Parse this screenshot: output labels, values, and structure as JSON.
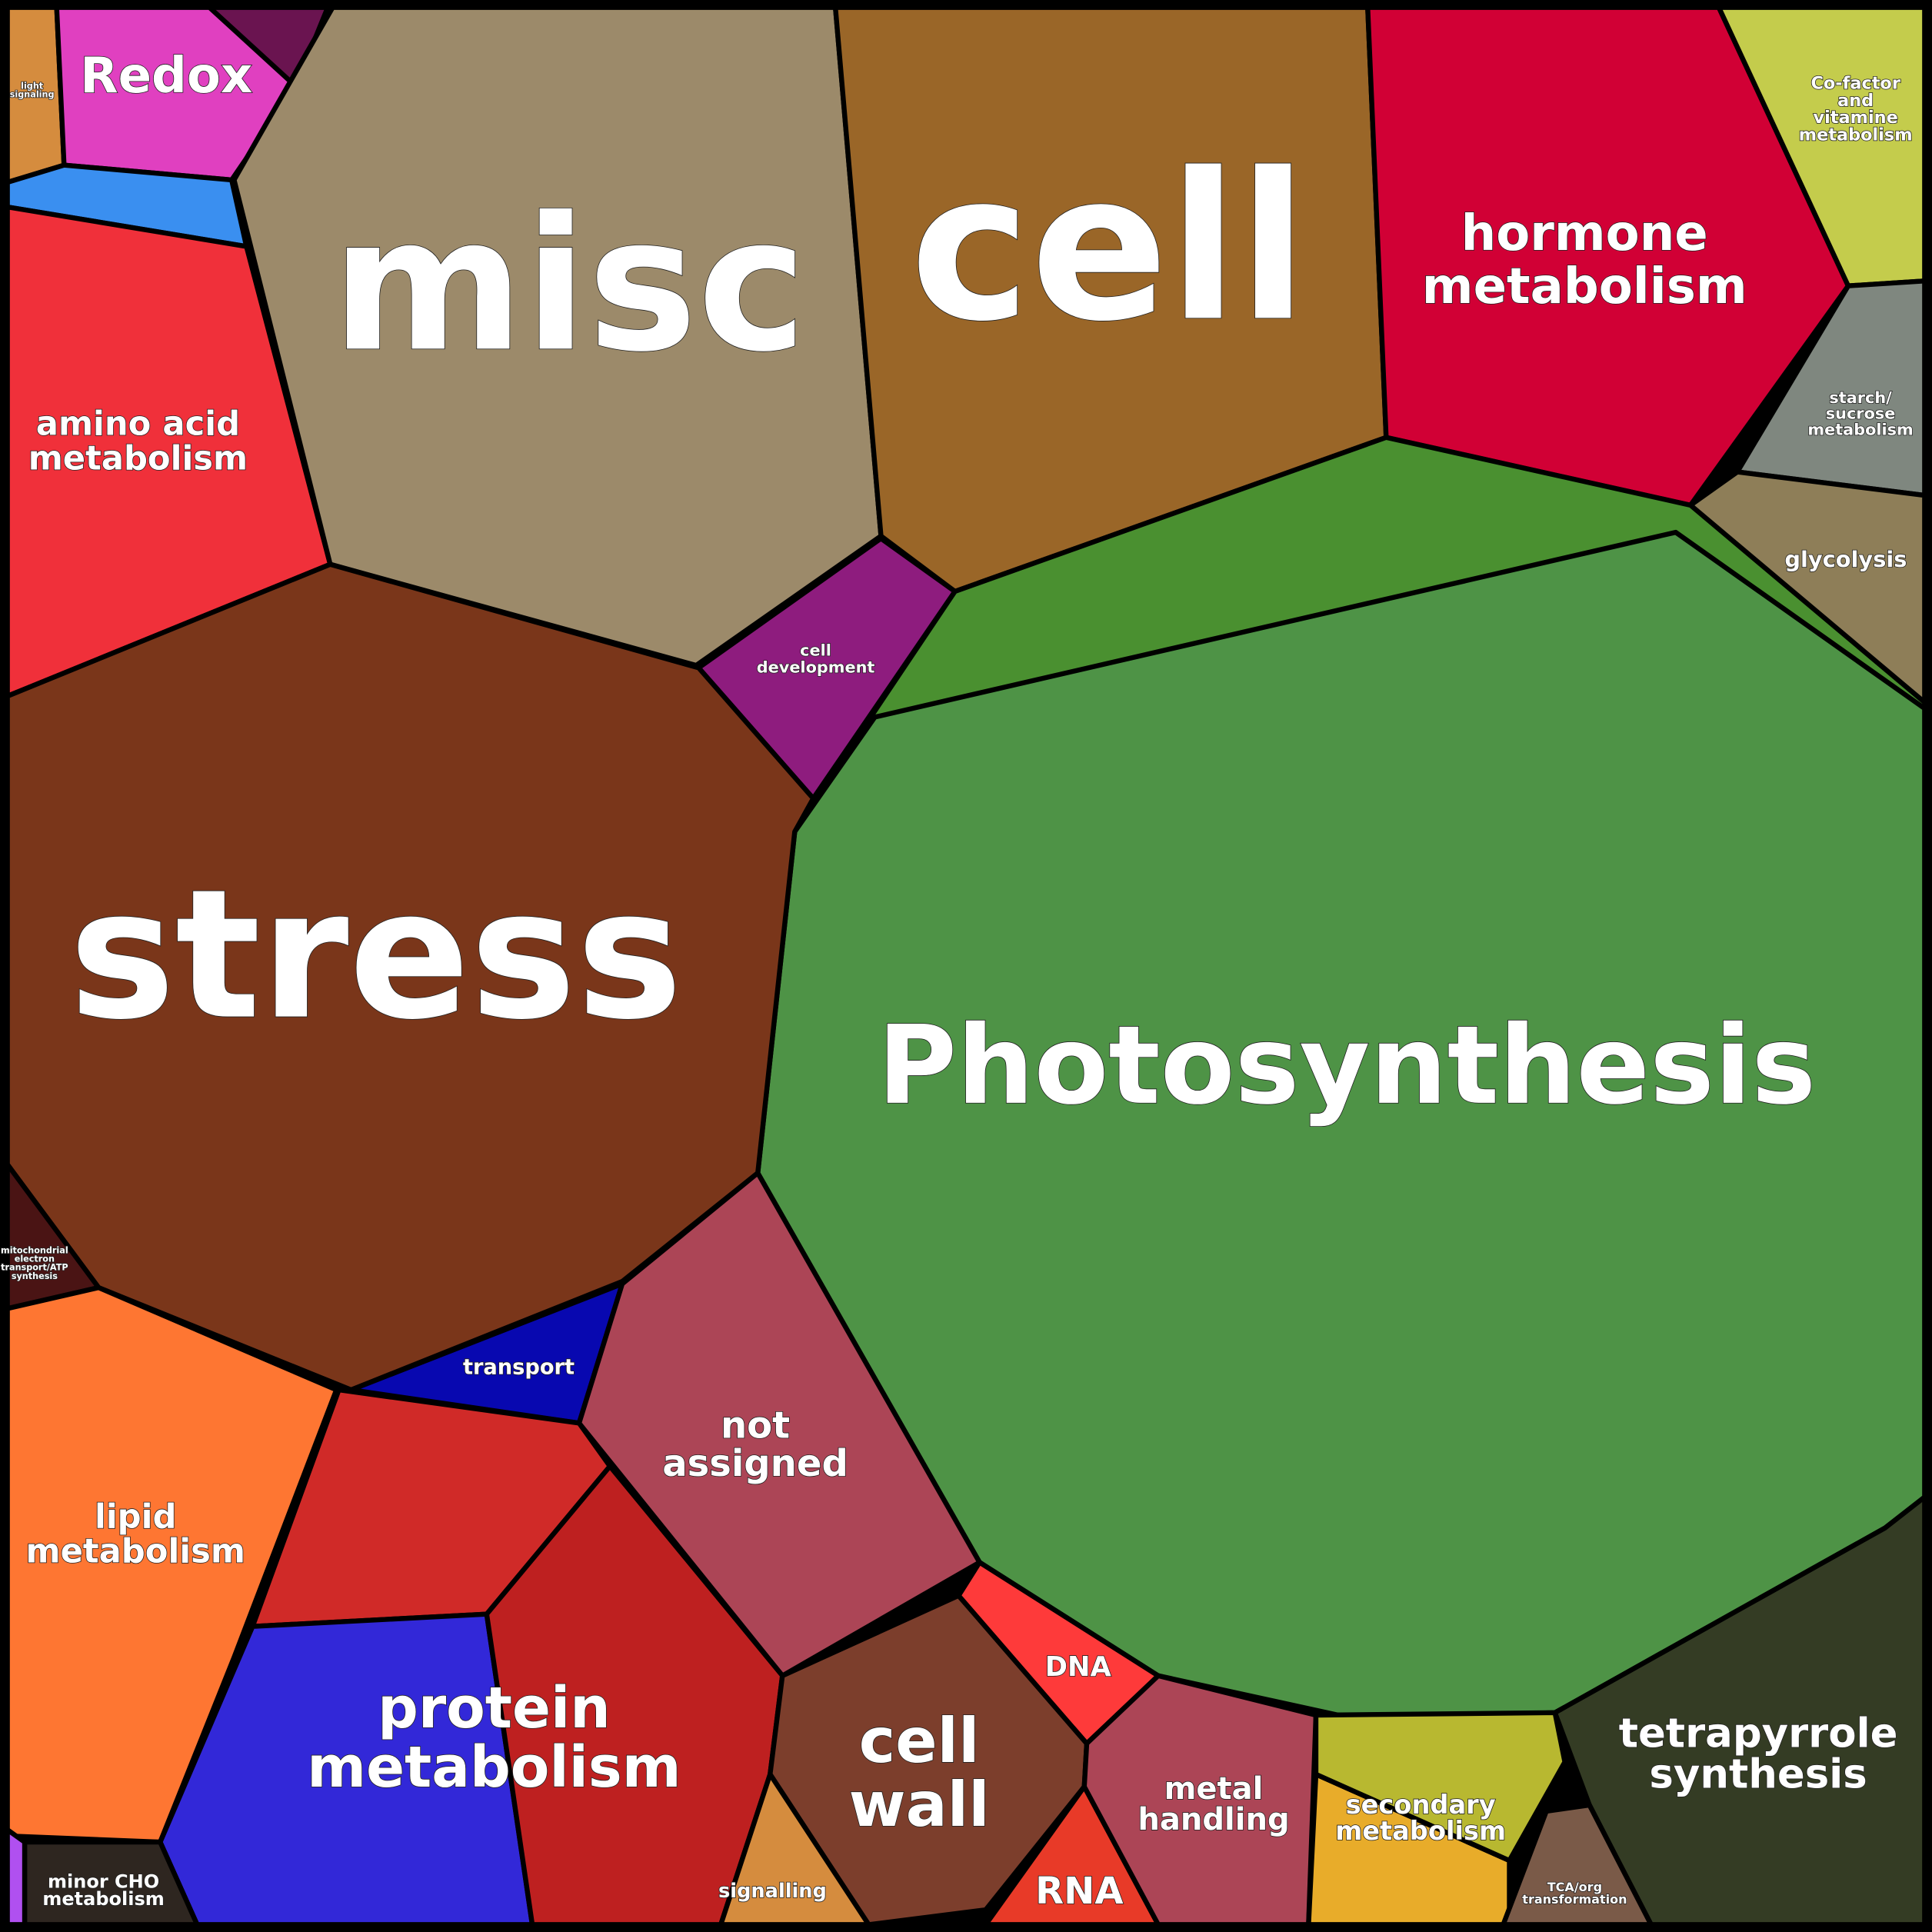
{
  "cells": [
    {
      "lines": [
        "light",
        "signaling"
      ]
    },
    {
      "lines": [
        "Redox"
      ]
    },
    {
      "lines": [
        "Co-factor",
        "and",
        "vitamine",
        "metabolism"
      ]
    },
    {
      "lines": [
        "misc"
      ]
    },
    {
      "lines": [
        "cell"
      ]
    },
    {
      "lines": [
        "hormone",
        "metabolism"
      ]
    },
    {
      "lines": [
        "amino acid",
        "metabolism"
      ]
    },
    {
      "lines": [
        "starch/",
        "sucrose",
        "metabolism"
      ]
    },
    {
      "lines": [
        "glycolysis"
      ]
    },
    {
      "lines": [
        "cell",
        "development"
      ]
    },
    {
      "lines": [
        "stress"
      ]
    },
    {
      "lines": [
        "Photosynthesis"
      ]
    },
    {
      "lines": [
        "mitochondrial",
        "electron",
        "transport/ATP",
        "synthesis"
      ]
    },
    {
      "lines": [
        "transport"
      ]
    },
    {
      "lines": [
        "not",
        "assigned"
      ]
    },
    {
      "lines": [
        "lipid",
        "metabolism"
      ]
    },
    {
      "lines": [
        "protein",
        "metabolism"
      ]
    },
    {
      "lines": [
        "cell",
        "wall"
      ]
    },
    {
      "lines": [
        "DNA"
      ]
    },
    {
      "lines": [
        "metal",
        "handling"
      ]
    },
    {
      "lines": [
        "secondary",
        "metabolism"
      ]
    },
    {
      "lines": [
        "tetrapyrrole",
        "synthesis"
      ]
    },
    {
      "lines": [
        "minor CHO",
        "metabolism"
      ]
    },
    {
      "lines": [
        "signalling"
      ]
    },
    {
      "lines": [
        "RNA"
      ]
    },
    {
      "lines": [
        "TCA/org",
        "transformation"
      ]
    }
  ]
}
